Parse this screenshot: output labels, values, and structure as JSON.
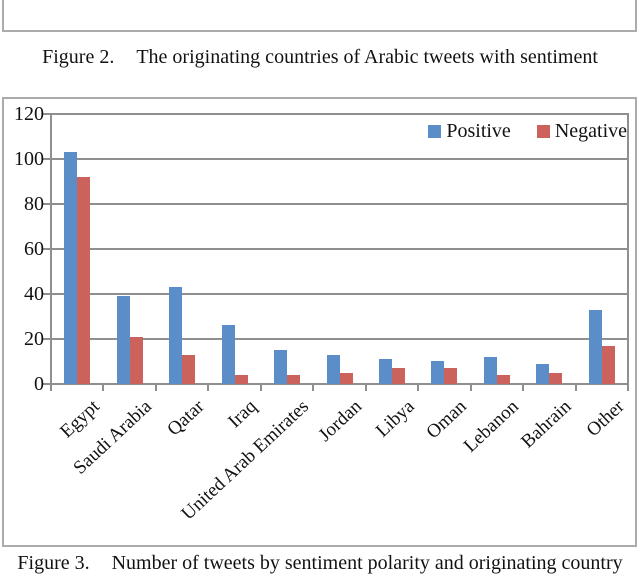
{
  "captions": {
    "figure2": {
      "label": "Figure 2.",
      "text": "The originating countries of Arabic tweets with sentiment"
    },
    "figure3": {
      "label": "Figure 3.",
      "text": "Number of tweets by sentiment polarity and originating country"
    }
  },
  "chart_data": {
    "type": "bar",
    "title": "",
    "xlabel": "",
    "ylabel": "",
    "categories": [
      "Egypt",
      "Saudi Arabia",
      "Qatar",
      "Iraq",
      "United Arab Emirates",
      "Jordan",
      "Libya",
      "Oman",
      "Lebanon",
      "Bahrain",
      "Other"
    ],
    "series": [
      {
        "name": "Positive",
        "color": "#5b8dc8",
        "values": [
          103,
          39,
          43,
          26,
          15,
          13,
          11,
          10,
          12,
          9,
          33
        ]
      },
      {
        "name": "Negative",
        "color": "#cb625c",
        "values": [
          92,
          21,
          13,
          4,
          4,
          5,
          7,
          7,
          4,
          5,
          17
        ]
      }
    ],
    "ylim": [
      0,
      120
    ],
    "ytick_step": 20,
    "yticks": [
      0,
      20,
      40,
      60,
      80,
      100,
      120
    ],
    "grid": true,
    "legend_position": "top-right"
  },
  "colors": {
    "axis": "#8f8f8f",
    "frame_border": "#ababab",
    "text": "#121212",
    "background": "#ffffff"
  }
}
